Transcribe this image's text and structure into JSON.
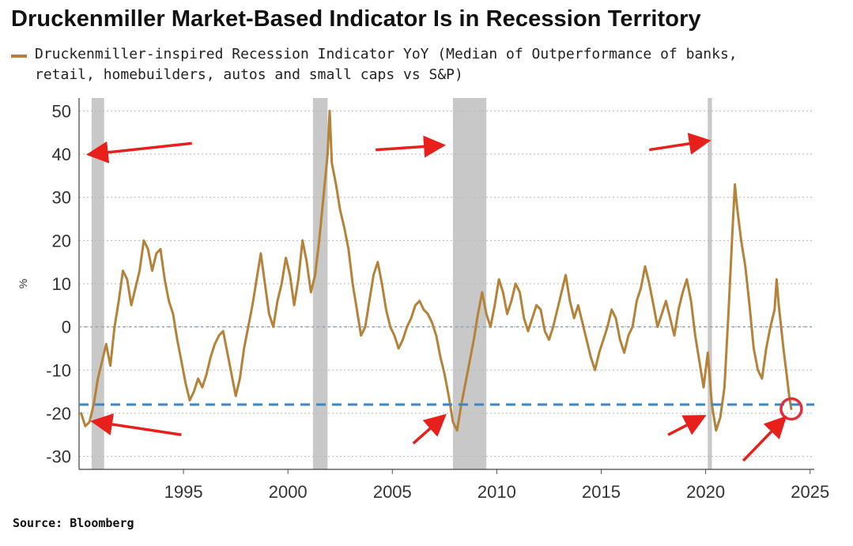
{
  "chart_data": {
    "type": "line",
    "title": "Druckenmiller Market-Based Indicator Is in Recession Territory",
    "ylabel": "%",
    "xlim": [
      1990.0,
      2025.2
    ],
    "ylim": [
      -33,
      53
    ],
    "y_ticks": [
      50,
      40,
      30,
      20,
      10,
      0,
      -10,
      -20,
      -30
    ],
    "x_ticks": [
      1995,
      2000,
      2005,
      2010,
      2015,
      2020,
      2025
    ],
    "zero_line": 0,
    "threshold_line": -18,
    "recession_bands": [
      [
        1990.6,
        1991.2
      ],
      [
        2001.2,
        2001.9
      ],
      [
        2007.9,
        2009.5
      ],
      [
        2020.1,
        2020.3
      ]
    ],
    "series": [
      {
        "name": "Druckenmiller-inspired Recession Indicator YoY (Median of Outperformance of banks, retail, homebuilders, autos and small caps vs S&P)",
        "color": "#b5823a",
        "points": [
          [
            1990.1,
            -20
          ],
          [
            1990.3,
            -23
          ],
          [
            1990.5,
            -22
          ],
          [
            1990.7,
            -18
          ],
          [
            1990.9,
            -12
          ],
          [
            1991.1,
            -8
          ],
          [
            1991.3,
            -4
          ],
          [
            1991.5,
            -9
          ],
          [
            1991.7,
            0
          ],
          [
            1991.9,
            6
          ],
          [
            1992.1,
            13
          ],
          [
            1992.3,
            11
          ],
          [
            1992.5,
            5
          ],
          [
            1992.7,
            9
          ],
          [
            1992.9,
            13
          ],
          [
            1993.1,
            20
          ],
          [
            1993.3,
            18
          ],
          [
            1993.5,
            13
          ],
          [
            1993.7,
            17
          ],
          [
            1993.9,
            18
          ],
          [
            1994.1,
            11
          ],
          [
            1994.3,
            6
          ],
          [
            1994.5,
            3
          ],
          [
            1994.7,
            -3
          ],
          [
            1994.9,
            -8
          ],
          [
            1995.1,
            -13
          ],
          [
            1995.3,
            -17
          ],
          [
            1995.5,
            -15
          ],
          [
            1995.7,
            -12
          ],
          [
            1995.9,
            -14
          ],
          [
            1996.1,
            -11
          ],
          [
            1996.3,
            -7
          ],
          [
            1996.5,
            -4
          ],
          [
            1996.7,
            -2
          ],
          [
            1996.9,
            -1
          ],
          [
            1997.1,
            -6
          ],
          [
            1997.3,
            -11
          ],
          [
            1997.5,
            -16
          ],
          [
            1997.7,
            -12
          ],
          [
            1997.9,
            -5
          ],
          [
            1998.1,
            0
          ],
          [
            1998.3,
            5
          ],
          [
            1998.5,
            11
          ],
          [
            1998.7,
            17
          ],
          [
            1998.9,
            10
          ],
          [
            1999.1,
            3
          ],
          [
            1999.3,
            0
          ],
          [
            1999.5,
            6
          ],
          [
            1999.7,
            10
          ],
          [
            1999.9,
            16
          ],
          [
            2000.1,
            12
          ],
          [
            2000.3,
            5
          ],
          [
            2000.5,
            11
          ],
          [
            2000.7,
            20
          ],
          [
            2000.9,
            15
          ],
          [
            2001.1,
            8
          ],
          [
            2001.3,
            12
          ],
          [
            2001.5,
            20
          ],
          [
            2001.7,
            30
          ],
          [
            2001.9,
            40
          ],
          [
            2002.0,
            50
          ],
          [
            2002.1,
            38
          ],
          [
            2002.3,
            33
          ],
          [
            2002.5,
            27
          ],
          [
            2002.7,
            23
          ],
          [
            2002.9,
            18
          ],
          [
            2003.1,
            10
          ],
          [
            2003.3,
            4
          ],
          [
            2003.5,
            -2
          ],
          [
            2003.7,
            0
          ],
          [
            2003.9,
            6
          ],
          [
            2004.1,
            12
          ],
          [
            2004.3,
            15
          ],
          [
            2004.5,
            10
          ],
          [
            2004.7,
            4
          ],
          [
            2004.9,
            0
          ],
          [
            2005.1,
            -2
          ],
          [
            2005.3,
            -5
          ],
          [
            2005.5,
            -3
          ],
          [
            2005.7,
            0
          ],
          [
            2005.9,
            2
          ],
          [
            2006.1,
            5
          ],
          [
            2006.3,
            6
          ],
          [
            2006.5,
            4
          ],
          [
            2006.7,
            3
          ],
          [
            2006.9,
            1
          ],
          [
            2007.1,
            -2
          ],
          [
            2007.3,
            -7
          ],
          [
            2007.5,
            -11
          ],
          [
            2007.7,
            -16
          ],
          [
            2007.9,
            -22
          ],
          [
            2008.1,
            -24
          ],
          [
            2008.3,
            -18
          ],
          [
            2008.5,
            -13
          ],
          [
            2008.7,
            -8
          ],
          [
            2008.9,
            -3
          ],
          [
            2009.1,
            3
          ],
          [
            2009.3,
            8
          ],
          [
            2009.5,
            3
          ],
          [
            2009.7,
            0
          ],
          [
            2009.9,
            5
          ],
          [
            2010.1,
            11
          ],
          [
            2010.3,
            8
          ],
          [
            2010.5,
            3
          ],
          [
            2010.7,
            6
          ],
          [
            2010.9,
            10
          ],
          [
            2011.1,
            8
          ],
          [
            2011.3,
            2
          ],
          [
            2011.5,
            -1
          ],
          [
            2011.7,
            2
          ],
          [
            2011.9,
            5
          ],
          [
            2012.1,
            4
          ],
          [
            2012.3,
            -1
          ],
          [
            2012.5,
            -3
          ],
          [
            2012.7,
            0
          ],
          [
            2012.9,
            4
          ],
          [
            2013.1,
            8
          ],
          [
            2013.3,
            12
          ],
          [
            2013.5,
            6
          ],
          [
            2013.7,
            2
          ],
          [
            2013.9,
            5
          ],
          [
            2014.1,
            1
          ],
          [
            2014.3,
            -3
          ],
          [
            2014.5,
            -7
          ],
          [
            2014.7,
            -10
          ],
          [
            2014.9,
            -6
          ],
          [
            2015.1,
            -3
          ],
          [
            2015.3,
            0
          ],
          [
            2015.5,
            4
          ],
          [
            2015.7,
            2
          ],
          [
            2015.9,
            -3
          ],
          [
            2016.1,
            -6
          ],
          [
            2016.3,
            -2
          ],
          [
            2016.5,
            0
          ],
          [
            2016.7,
            6
          ],
          [
            2016.9,
            9
          ],
          [
            2017.1,
            14
          ],
          [
            2017.3,
            10
          ],
          [
            2017.5,
            5
          ],
          [
            2017.7,
            0
          ],
          [
            2017.9,
            3
          ],
          [
            2018.1,
            6
          ],
          [
            2018.3,
            2
          ],
          [
            2018.5,
            -2
          ],
          [
            2018.7,
            4
          ],
          [
            2018.9,
            8
          ],
          [
            2019.1,
            11
          ],
          [
            2019.3,
            6
          ],
          [
            2019.5,
            -2
          ],
          [
            2019.7,
            -8
          ],
          [
            2019.9,
            -14
          ],
          [
            2020.1,
            -6
          ],
          [
            2020.3,
            -18
          ],
          [
            2020.5,
            -24
          ],
          [
            2020.7,
            -21
          ],
          [
            2020.9,
            -14
          ],
          [
            2021.1,
            4
          ],
          [
            2021.3,
            24
          ],
          [
            2021.4,
            33
          ],
          [
            2021.5,
            28
          ],
          [
            2021.7,
            20
          ],
          [
            2021.9,
            14
          ],
          [
            2022.1,
            5
          ],
          [
            2022.3,
            -5
          ],
          [
            2022.5,
            -10
          ],
          [
            2022.7,
            -12
          ],
          [
            2022.9,
            -5
          ],
          [
            2023.1,
            0
          ],
          [
            2023.3,
            4
          ],
          [
            2023.4,
            11
          ],
          [
            2023.5,
            5
          ],
          [
            2023.7,
            -4
          ],
          [
            2023.8,
            -8
          ],
          [
            2023.9,
            -12
          ],
          [
            2024.0,
            -16
          ],
          [
            2024.1,
            -19
          ]
        ]
      }
    ],
    "annotation_circle": [
      2024.1,
      -19
    ]
  },
  "source_label": "Source: Bloomberg",
  "colors": {
    "series": "#b5823a",
    "band": "#c8c8c8",
    "threshold": "#3a87c8",
    "arrow": "#e8201c",
    "grid": "#b7b7b7"
  }
}
